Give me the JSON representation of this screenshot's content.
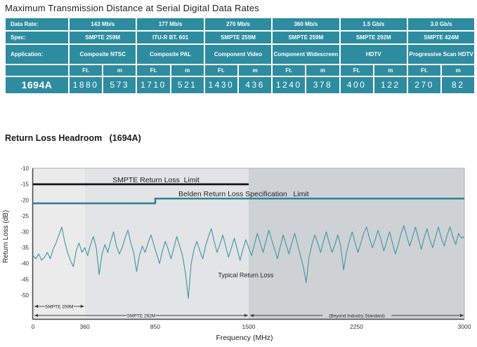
{
  "table_section": {
    "title": "Maximum Transmission Distance at Serial Digital Data Rates",
    "table": {
      "header_color": "#2e8ca0",
      "row_labels": [
        "Data Rate:",
        "Spec:",
        "Application:"
      ],
      "unit_ft": "Ft.",
      "unit_m": "m",
      "product_row_label": "1694A",
      "columns": [
        {
          "data_rate": "143 Mb/s",
          "spec": "SMPTE 259M",
          "application": "Composite NTSC",
          "ft": "1880",
          "m": "573"
        },
        {
          "data_rate": "177 Mb/s",
          "spec": "ITU-R BT. 601",
          "application": "Composite PAL",
          "ft": "1710",
          "m": "521"
        },
        {
          "data_rate": "270 Mb/s",
          "spec": "SMPTE 259M",
          "application": "Component Video",
          "ft": "1430",
          "m": "436"
        },
        {
          "data_rate": "360 Mb/s",
          "spec": "SMPTE 259M",
          "application": "Component Widescreen",
          "ft": "1240",
          "m": "378"
        },
        {
          "data_rate": "1.5 Gb/s",
          "spec": "SMPTE 292M",
          "application": "HDTV",
          "ft": "400",
          "m": "122"
        },
        {
          "data_rate": "3.0 Gb/s",
          "spec": "SMPTE 424M",
          "application": "Progressive Scan HDTV",
          "ft": "270",
          "m": "82"
        }
      ]
    }
  },
  "chart_section": {
    "title": "Return Loss Headroom",
    "title_suffix": "(1694A)"
  },
  "chart_data": {
    "type": "line",
    "title": "Return Loss Headroom (1694A)",
    "xlabel": "Frequency (MHz)",
    "ylabel": "Return Loss (dB)",
    "xlim": [
      0,
      3000
    ],
    "ylim": [
      -57,
      -10
    ],
    "x_ticks": [
      0,
      360,
      850,
      1500,
      2250,
      3000
    ],
    "y_ticks": [
      -10,
      -15,
      -20,
      -25,
      -30,
      -35,
      -40,
      -45,
      -50
    ],
    "grid": false,
    "legend_position": "none",
    "bands": [
      {
        "range": [
          0,
          360
        ],
        "color": "#ebebeb"
      },
      {
        "range": [
          360,
          1500
        ],
        "color": "#e3e4e5"
      },
      {
        "range": [
          1500,
          3000
        ],
        "color": "#ced2d4"
      }
    ],
    "series": [
      {
        "id": "smpte-return-loss-limit",
        "name": "SMPTE Return Loss Limit",
        "color": "#141414",
        "width": 2.8,
        "points": [
          [
            0,
            -15
          ],
          [
            1500,
            -15
          ]
        ]
      },
      {
        "id": "belden-return-loss-limit",
        "name": "Belden Return Loss Specification Limit",
        "color": "#318299",
        "width": 2.6,
        "points": [
          [
            0,
            -21
          ],
          [
            850,
            -21
          ],
          [
            850,
            -19.5
          ],
          [
            3000,
            -19.5
          ]
        ]
      },
      {
        "id": "typical-return-loss",
        "name": "Typical Return Loss",
        "color": "#3f94a9",
        "width": 1.1,
        "x_start": 0,
        "x_step": 20,
        "values": [
          -37.5,
          -38.5,
          -37,
          -39,
          -38,
          -36.5,
          -38.5,
          -35.5,
          -33.5,
          -31,
          -28.5,
          -33,
          -36.5,
          -39,
          -41,
          -36,
          -33.5,
          -36.5,
          -35,
          -37.5,
          -34,
          -31.5,
          -35,
          -43.5,
          -37,
          -34,
          -36.5,
          -33,
          -30,
          -34.5,
          -37,
          -35,
          -32,
          -29.5,
          -33.5,
          -36.5,
          -42.5,
          -37.5,
          -34.5,
          -36.5,
          -33.5,
          -31,
          -34,
          -37,
          -40,
          -36,
          -33,
          -35.5,
          -38.5,
          -35,
          -31.5,
          -34.5,
          -37.5,
          -43,
          -51,
          -40,
          -35.5,
          -33,
          -36,
          -38.5,
          -34.5,
          -31.5,
          -29,
          -33,
          -36.5,
          -34,
          -31,
          -34.5,
          -38,
          -35,
          -32,
          -35.5,
          -39,
          -35.5,
          -32.5,
          -35,
          -37.5,
          -34,
          -30.5,
          -33.5,
          -36.5,
          -33,
          -29.5,
          -32.5,
          -35.5,
          -38.5,
          -34.5,
          -31,
          -34,
          -37,
          -33.5,
          -30.5,
          -34,
          -37.5,
          -41,
          -46,
          -38,
          -34,
          -31,
          -33.5,
          -36.5,
          -33,
          -30,
          -33.5,
          -36.5,
          -34,
          -31,
          -34.5,
          -42,
          -36.5,
          -33,
          -30,
          -33.5,
          -36.5,
          -33.5,
          -30.5,
          -28.5,
          -32,
          -35,
          -32.5,
          -29.5,
          -32.5,
          -36,
          -33,
          -30,
          -33.5,
          -37,
          -34,
          -30.5,
          -28,
          -31.5,
          -34.5,
          -31.5,
          -28.5,
          -32,
          -35.5,
          -32,
          -29,
          -32.5,
          -35,
          -31.5,
          -28.5,
          -32,
          -34.5,
          -31,
          -28.5,
          -31.5,
          -34,
          -30.5,
          -32,
          -31.5
        ]
      }
    ],
    "annotations": [
      {
        "id": "smpte-limit-label",
        "text": "SMPTE Return Loss  Limit",
        "x": 855,
        "y": -14.4,
        "size": 10.5
      },
      {
        "id": "belden-limit-label",
        "text": "Belden Return Loss Specification   Limit",
        "x": 1465,
        "y": -18.8,
        "size": 10.5
      },
      {
        "id": "typical-label",
        "text": "Typical Return Loss",
        "x": 1480,
        "y": -44.3,
        "size": 9
      }
    ],
    "range_arrows": [
      {
        "label": "SMPTE 259M",
        "from": 0,
        "to": 360,
        "row": 0
      },
      {
        "label": "SMPTE 292M",
        "from": 0,
        "to": 1500,
        "row": 1
      },
      {
        "label": "(Beyond Industry Standard)",
        "from": 1500,
        "to": 3000,
        "row": 1
      }
    ]
  }
}
